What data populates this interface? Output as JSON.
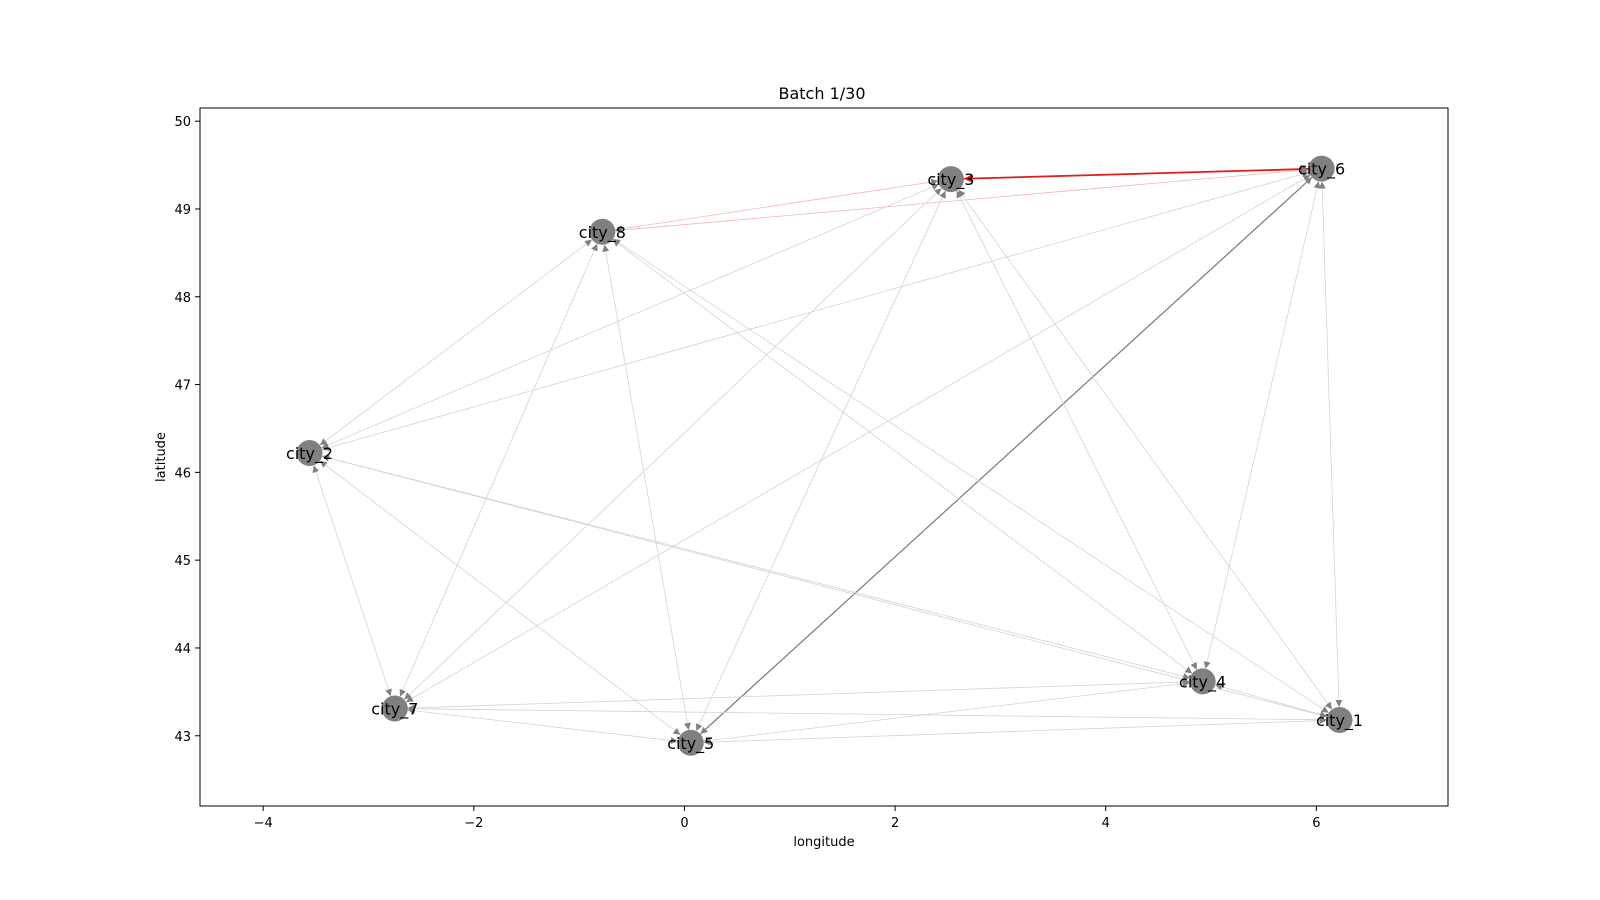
{
  "chart_data": {
    "type": "network",
    "title": "Batch 1/30",
    "xlabel": "longitude",
    "ylabel": "latitude",
    "xlim": [
      -4.6,
      7.25
    ],
    "ylim": [
      42.2,
      50.15
    ],
    "xticks": [
      -4,
      -2,
      0,
      2,
      4,
      6
    ],
    "yticks": [
      43,
      44,
      45,
      46,
      47,
      48,
      49,
      50
    ],
    "xtick_labels": [
      "−4",
      "−2",
      "0",
      "2",
      "4",
      "6"
    ],
    "ytick_labels": [
      "43",
      "44",
      "45",
      "46",
      "47",
      "48",
      "49",
      "50"
    ],
    "grid": false,
    "node_color": "#808080",
    "edge_color": "#d3d3d3",
    "nodes": [
      {
        "id": "city_1",
        "label": "city_1",
        "lon": 6.22,
        "lat": 43.18
      },
      {
        "id": "city_2",
        "label": "city_2",
        "lon": -3.56,
        "lat": 46.22
      },
      {
        "id": "city_3",
        "label": "city_3",
        "lon": 2.53,
        "lat": 49.34
      },
      {
        "id": "city_4",
        "label": "city_4",
        "lon": 4.92,
        "lat": 43.62
      },
      {
        "id": "city_5",
        "label": "city_5",
        "lon": 0.06,
        "lat": 42.92
      },
      {
        "id": "city_6",
        "label": "city_6",
        "lon": 6.05,
        "lat": 49.46
      },
      {
        "id": "city_7",
        "label": "city_7",
        "lon": -2.75,
        "lat": 43.31
      },
      {
        "id": "city_8",
        "label": "city_8",
        "lon": -0.78,
        "lat": 48.74
      }
    ],
    "edges": [
      {
        "source": "city_3",
        "target": "city_6",
        "color": "#e41a1c",
        "weight": 3
      },
      {
        "source": "city_5",
        "target": "city_6",
        "color": "#808080",
        "weight": 2
      },
      {
        "source": "city_3",
        "target": "city_8",
        "color": "#f4b6b6",
        "weight": 1
      },
      {
        "source": "city_6",
        "target": "city_8",
        "color": "#f4b6b6",
        "weight": 1
      },
      {
        "source": "city_8",
        "target": "city_2",
        "color": "#d3d3d3",
        "weight": 1
      },
      {
        "source": "city_8",
        "target": "city_7",
        "color": "#d3d3d3",
        "weight": 1
      },
      {
        "source": "city_8",
        "target": "city_5",
        "color": "#d3d3d3",
        "weight": 1
      },
      {
        "source": "city_8",
        "target": "city_4",
        "color": "#d3d3d3",
        "weight": 1
      },
      {
        "source": "city_8",
        "target": "city_1",
        "color": "#d3d3d3",
        "weight": 1
      },
      {
        "source": "city_3",
        "target": "city_2",
        "color": "#d3d3d3",
        "weight": 1
      },
      {
        "source": "city_3",
        "target": "city_7",
        "color": "#d3d3d3",
        "weight": 1
      },
      {
        "source": "city_3",
        "target": "city_5",
        "color": "#d3d3d3",
        "weight": 1
      },
      {
        "source": "city_3",
        "target": "city_4",
        "color": "#d3d3d3",
        "weight": 1
      },
      {
        "source": "city_3",
        "target": "city_1",
        "color": "#d3d3d3",
        "weight": 1
      },
      {
        "source": "city_6",
        "target": "city_2",
        "color": "#d3d3d3",
        "weight": 1
      },
      {
        "source": "city_6",
        "target": "city_7",
        "color": "#d3d3d3",
        "weight": 1
      },
      {
        "source": "city_6",
        "target": "city_4",
        "color": "#d3d3d3",
        "weight": 1
      },
      {
        "source": "city_6",
        "target": "city_1",
        "color": "#d3d3d3",
        "weight": 1
      },
      {
        "source": "city_2",
        "target": "city_7",
        "color": "#d3d3d3",
        "weight": 1
      },
      {
        "source": "city_2",
        "target": "city_5",
        "color": "#d3d3d3",
        "weight": 1
      },
      {
        "source": "city_2",
        "target": "city_4",
        "color": "#d3d3d3",
        "weight": 1
      },
      {
        "source": "city_2",
        "target": "city_1",
        "color": "#d3d3d3",
        "weight": 1
      },
      {
        "source": "city_7",
        "target": "city_5",
        "color": "#d3d3d3",
        "weight": 1
      },
      {
        "source": "city_7",
        "target": "city_4",
        "color": "#d3d3d3",
        "weight": 1
      },
      {
        "source": "city_7",
        "target": "city_1",
        "color": "#d3d3d3",
        "weight": 1
      },
      {
        "source": "city_5",
        "target": "city_4",
        "color": "#d3d3d3",
        "weight": 1
      },
      {
        "source": "city_5",
        "target": "city_1",
        "color": "#d3d3d3",
        "weight": 1
      },
      {
        "source": "city_4",
        "target": "city_1",
        "color": "#d3d3d3",
        "weight": 1
      }
    ]
  }
}
